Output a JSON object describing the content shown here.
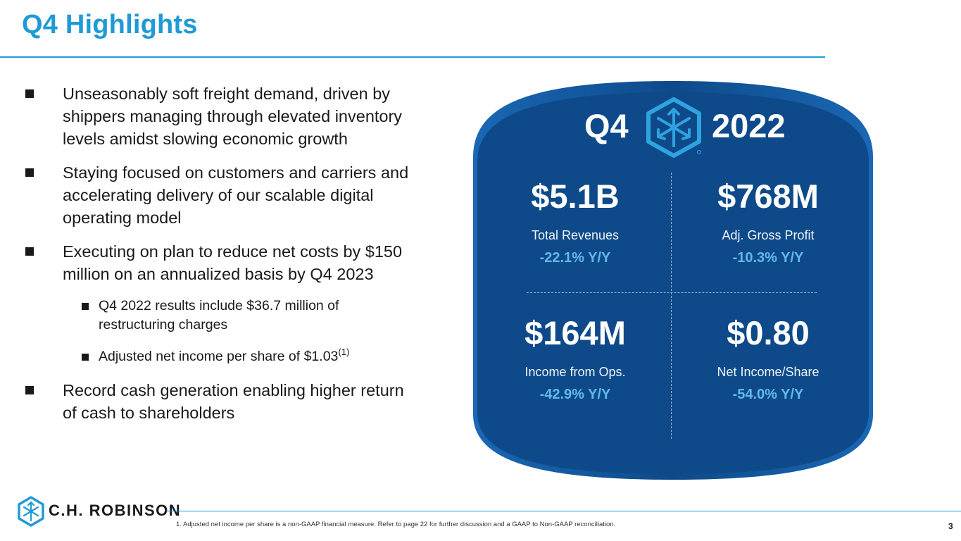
{
  "page": {
    "title": "Q4 Highlights",
    "page_number": "3",
    "footnote": "1.    Adjusted net income per share is a non-GAAP financial measure. Refer to page 22 for further discussion and a GAAP to Non-GAAP reconciliation."
  },
  "bullets": [
    {
      "text": "Unseasonably soft freight demand, driven by shippers managing through elevated inventory levels amidst slowing economic growth"
    },
    {
      "text": "Staying focused on customers and carriers and accelerating delivery of our scalable digital operating model"
    },
    {
      "text": "Executing on plan to reduce net costs by $150 million on an annualized basis by Q4 2023"
    }
  ],
  "sub_bullets": [
    {
      "text": "Q4 2022 results include $36.7 million of restructuring charges"
    },
    {
      "text": "Adjusted net income per share of $1.03",
      "footnote_ref": "(1)"
    }
  ],
  "last_bullet": {
    "text": "Record cash generation enabling higher return of cash to shareholders"
  },
  "panel": {
    "quarter": "Q4",
    "year": "2022",
    "metrics": [
      {
        "value": "$5.1B",
        "label": "Total Revenues",
        "change": "-22.1% Y/Y"
      },
      {
        "value": "$768M",
        "label": "Adj. Gross Profit",
        "change": "-10.3% Y/Y"
      },
      {
        "value": "$164M",
        "label": "Income from Ops.",
        "change": "-42.9% Y/Y"
      },
      {
        "value": "$0.80",
        "label": "Net Income/Share",
        "change": "-54.0% Y/Y"
      }
    ]
  },
  "brand": {
    "name": "C.H. ROBINSON",
    "colors": {
      "accent": "#1f9ad6",
      "panel": "#0e4a8a",
      "change": "#62b8ea"
    }
  }
}
